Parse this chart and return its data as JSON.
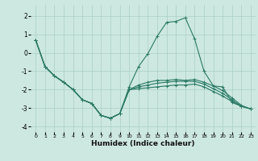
{
  "xlabel": "Humidex (Indice chaleur)",
  "bg_color": "#cde8e0",
  "grid_color": "#aacfc5",
  "line_color": "#2a7a65",
  "xlim": [
    -0.5,
    23.5
  ],
  "ylim": [
    -4.3,
    2.6
  ],
  "yticks": [
    -4,
    -3,
    -2,
    -1,
    0,
    1,
    2
  ],
  "xticks": [
    0,
    1,
    2,
    3,
    4,
    5,
    6,
    7,
    8,
    9,
    10,
    11,
    12,
    13,
    14,
    15,
    16,
    17,
    18,
    19,
    20,
    21,
    22,
    23
  ],
  "line1_x": [
    0,
    1,
    2,
    3,
    4,
    5,
    6,
    7,
    8,
    9,
    10,
    11,
    12,
    13,
    14,
    15,
    16,
    17,
    18,
    19,
    20,
    21,
    22,
    23
  ],
  "line1_y": [
    0.7,
    -0.75,
    -1.25,
    -1.6,
    -2.0,
    -2.55,
    -2.75,
    -3.4,
    -3.55,
    -3.3,
    -1.85,
    -0.75,
    -0.05,
    0.9,
    1.65,
    1.7,
    1.9,
    0.75,
    -1.0,
    -1.8,
    -1.85,
    -2.7,
    -2.9,
    -3.05
  ],
  "line2_x": [
    0,
    1,
    2,
    3,
    4,
    5,
    6,
    7,
    8,
    9,
    10,
    11,
    12,
    13,
    14,
    15,
    16,
    17,
    18,
    19,
    20,
    21,
    22,
    23
  ],
  "line2_y": [
    0.7,
    -0.75,
    -1.25,
    -1.6,
    -2.0,
    -2.55,
    -2.75,
    -3.4,
    -3.55,
    -3.3,
    -2.0,
    -1.95,
    -1.9,
    -1.85,
    -1.8,
    -1.75,
    -1.75,
    -1.7,
    -1.85,
    -2.1,
    -2.35,
    -2.65,
    -2.9,
    -3.05
  ],
  "line3_x": [
    0,
    1,
    2,
    3,
    4,
    5,
    6,
    7,
    8,
    9,
    10,
    11,
    12,
    13,
    14,
    15,
    16,
    17,
    18,
    19,
    20,
    21,
    22,
    23
  ],
  "line3_y": [
    0.7,
    -0.75,
    -1.25,
    -1.6,
    -2.0,
    -2.55,
    -2.75,
    -3.4,
    -3.55,
    -3.3,
    -2.0,
    -1.85,
    -1.75,
    -1.65,
    -1.6,
    -1.55,
    -1.55,
    -1.55,
    -1.7,
    -1.95,
    -2.2,
    -2.55,
    -2.9,
    -3.05
  ],
  "line4_x": [
    0,
    1,
    2,
    3,
    4,
    5,
    6,
    7,
    8,
    9,
    10,
    11,
    12,
    13,
    14,
    15,
    16,
    17,
    18,
    19,
    20,
    21,
    22,
    23
  ],
  "line4_y": [
    0.7,
    -0.75,
    -1.25,
    -1.6,
    -2.0,
    -2.55,
    -2.75,
    -3.4,
    -3.55,
    -3.3,
    -2.0,
    -1.75,
    -1.6,
    -1.5,
    -1.5,
    -1.45,
    -1.5,
    -1.45,
    -1.6,
    -1.8,
    -2.05,
    -2.45,
    -2.85,
    -3.05
  ]
}
